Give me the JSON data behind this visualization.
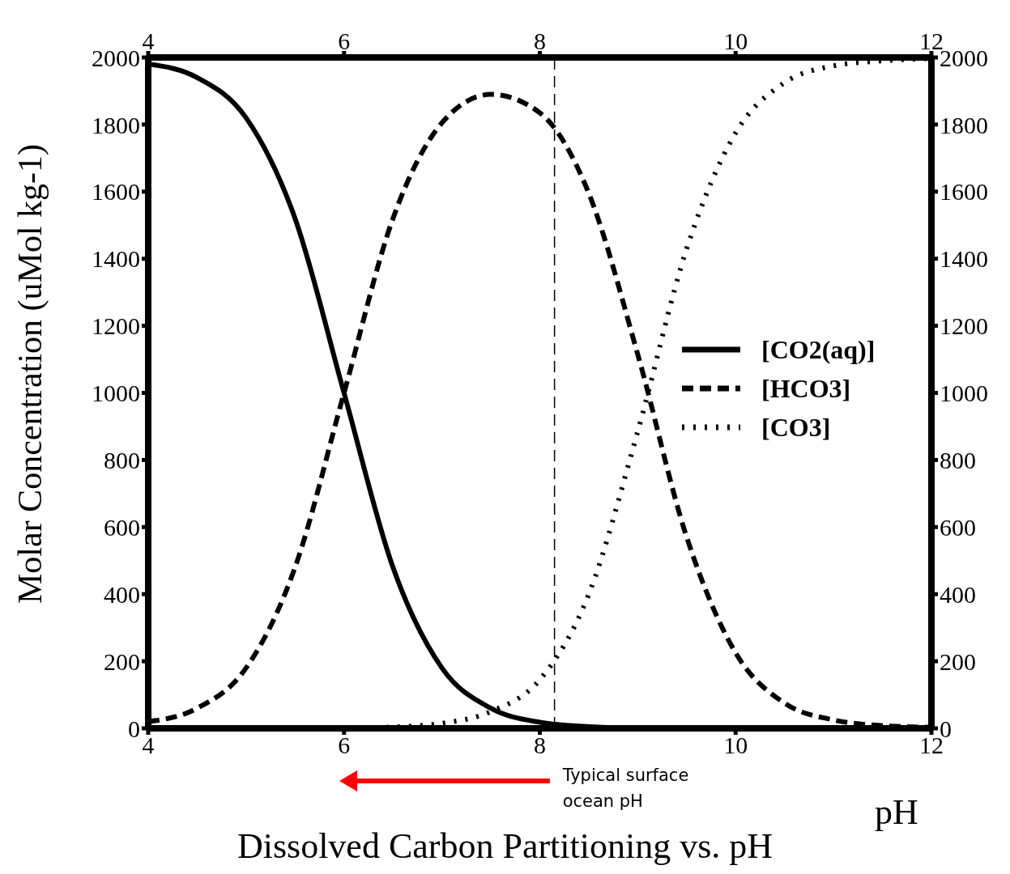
{
  "chart_data": {
    "type": "line",
    "title": "Dissolved Carbon Partitioning vs. pH",
    "xlabel": "pH",
    "ylabel": "Molar Concentration (uMol kg-1)",
    "x": [
      4,
      4.5,
      5,
      5.5,
      6,
      6.5,
      7,
      7.5,
      8,
      8.5,
      9,
      9.5,
      10,
      10.5,
      11,
      11.5,
      12
    ],
    "series": [
      {
        "name": "[CO2(aq)]",
        "color": "#000000",
        "line_style": "solid",
        "values": [
          1980,
          1940,
          1820,
          1520,
          1000,
          480,
          180,
          60,
          18,
          5,
          1,
          0,
          0,
          0,
          0,
          0,
          0
        ]
      },
      {
        "name": "[HCO3]",
        "color": "#000000",
        "line_style": "dashed",
        "values": [
          20,
          60,
          180,
          480,
          1000,
          1520,
          1805,
          1890,
          1835,
          1595,
          1115,
          570,
          225,
          75,
          25,
          8,
          3
        ]
      },
      {
        "name": "[CO3]",
        "color": "#000000",
        "line_style": "dotted",
        "values": [
          0,
          0,
          0,
          0,
          0,
          4,
          15,
          50,
          145,
          400,
          885,
          1430,
          1775,
          1925,
          1975,
          1990,
          1997
        ]
      }
    ],
    "xlim": [
      4,
      12
    ],
    "xticks": [
      4,
      6,
      8,
      10,
      12
    ],
    "x2lim": [
      4,
      12
    ],
    "x2ticks": [
      4,
      6,
      8,
      10,
      12
    ],
    "ylim": [
      0,
      2000
    ],
    "yticks": [
      0,
      200,
      400,
      600,
      800,
      1000,
      1200,
      1400,
      1600,
      1800,
      2000
    ],
    "y2lim": [
      0,
      2000
    ],
    "y2ticks": [
      0,
      200,
      400,
      600,
      800,
      1000,
      1200,
      1400,
      1600,
      1800,
      2000
    ],
    "ref_lines": [
      {
        "axis": "x",
        "value": 8.15,
        "label": "Typical surface ocean pH",
        "color": "#000000",
        "line_style": "dashed"
      }
    ],
    "legend": "right",
    "grid": false,
    "marker": "none"
  }
}
